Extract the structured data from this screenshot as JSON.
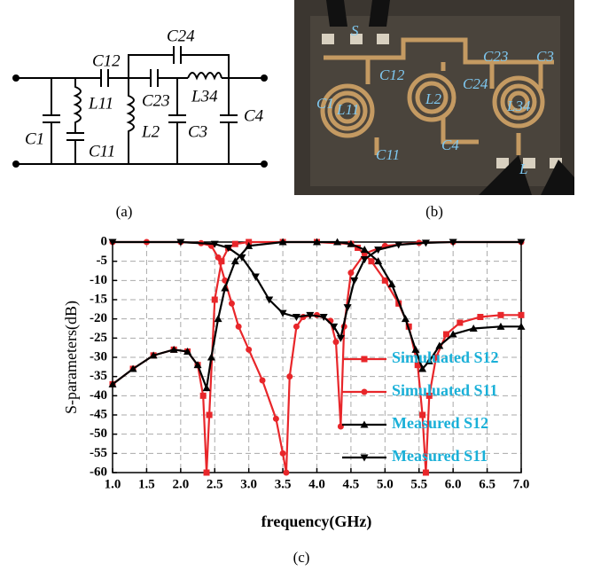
{
  "panel_a": {
    "caption": "(a)",
    "labels": [
      "C12",
      "C24",
      "L11",
      "C23",
      "L34",
      "C1",
      "C11",
      "L2",
      "C3",
      "C4"
    ]
  },
  "panel_b": {
    "caption": "(b)",
    "labels": [
      "S",
      "C1",
      "C12",
      "C23",
      "C3",
      "L11",
      "L2",
      "C24",
      "L34",
      "C11",
      "C4",
      "L"
    ]
  },
  "chart_data": {
    "type": "line",
    "caption": "(c)",
    "xlabel": "frequency(GHz)",
    "ylabel": "S-parameters(dB)",
    "xlim": [
      1,
      7
    ],
    "ylim": [
      -60,
      0
    ],
    "xticks": [
      {
        "value": 1,
        "label": "1.0"
      },
      1.5,
      {
        "value": 2,
        "label": "2.0"
      },
      2.5,
      {
        "value": 3,
        "label": "3.0"
      },
      3.5,
      {
        "value": 4,
        "label": "4.0"
      },
      4.5,
      {
        "value": 5,
        "label": "5.0"
      },
      5.5,
      {
        "value": 6,
        "label": "6.0"
      },
      6.5,
      {
        "value": 7,
        "label": "7.0"
      }
    ],
    "yticks": [
      0,
      -5,
      -10,
      -15,
      -20,
      -25,
      -30,
      -35,
      -40,
      -45,
      -50,
      -55,
      -60
    ],
    "grid": true,
    "legend": "lower right",
    "series": [
      {
        "name": "Simuluated S12",
        "color": "#e8262a",
        "marker": "square",
        "x": [
          1,
          1.3,
          1.6,
          1.9,
          2.1,
          2.25,
          2.33,
          2.38,
          2.42,
          2.5,
          2.6,
          2.7,
          2.8,
          3.0,
          3.5,
          4.0,
          4.5,
          4.6,
          4.8,
          5.0,
          5.2,
          5.35,
          5.48,
          5.55,
          5.6,
          5.65,
          5.75,
          5.9,
          6.1,
          6.4,
          6.7,
          7.0
        ],
        "values": [
          -37,
          -33,
          -29.5,
          -28,
          -28.5,
          -32,
          -40,
          -60,
          -45,
          -15,
          -5,
          -1.5,
          -0.5,
          0,
          0,
          0,
          -0.5,
          -1.5,
          -5,
          -10,
          -16,
          -22,
          -32,
          -45,
          -60,
          -40,
          -30,
          -24,
          -21,
          -19.5,
          -19,
          -19
        ]
      },
      {
        "name": "Simuluated S11",
        "color": "#e8262a",
        "marker": "circle",
        "x": [
          1,
          1.5,
          2,
          2.3,
          2.45,
          2.55,
          2.65,
          2.75,
          2.85,
          3.0,
          3.2,
          3.4,
          3.5,
          3.55,
          3.6,
          3.7,
          3.8,
          4.0,
          4.2,
          4.28,
          4.35,
          4.4,
          4.5,
          4.7,
          5.0,
          5.5,
          6.0,
          7.0
        ],
        "values": [
          0,
          0,
          0,
          -0.3,
          -1,
          -4,
          -10,
          -16,
          -22,
          -28,
          -36,
          -46,
          -55,
          -60,
          -35,
          -22,
          -19.5,
          -19,
          -20.5,
          -26,
          -48,
          -22,
          -8,
          -3,
          -1,
          -0.2,
          0,
          0
        ]
      },
      {
        "name": "Measured S12",
        "color": "#000000",
        "marker": "triangle",
        "x": [
          1,
          1.3,
          1.6,
          1.9,
          2.1,
          2.25,
          2.38,
          2.45,
          2.55,
          2.65,
          2.8,
          3.0,
          3.5,
          4.0,
          4.3,
          4.5,
          4.7,
          4.9,
          5.1,
          5.3,
          5.45,
          5.55,
          5.65,
          5.8,
          6.0,
          6.3,
          6.7,
          7.0
        ],
        "values": [
          -37,
          -33,
          -29.5,
          -28,
          -28.5,
          -32,
          -38,
          -30,
          -20,
          -12,
          -5,
          -1,
          0,
          0,
          0,
          -0.5,
          -2,
          -5,
          -11,
          -20,
          -28,
          -33,
          -31,
          -27,
          -24,
          -22.5,
          -22,
          -22
        ]
      },
      {
        "name": "Measured S11",
        "color": "#000000",
        "marker": "triangle-down",
        "x": [
          1,
          2,
          2.5,
          2.7,
          2.9,
          3.1,
          3.3,
          3.5,
          3.7,
          3.9,
          4.1,
          4.25,
          4.35,
          4.45,
          4.55,
          4.7,
          4.9,
          5.2,
          5.6,
          6.0,
          7.0
        ],
        "values": [
          0,
          0,
          -0.5,
          -1.5,
          -4,
          -9,
          -15,
          -18.5,
          -19.5,
          -19,
          -19.5,
          -22,
          -25,
          -17,
          -10,
          -4.5,
          -2,
          -0.7,
          -0.2,
          0,
          0
        ]
      }
    ]
  }
}
